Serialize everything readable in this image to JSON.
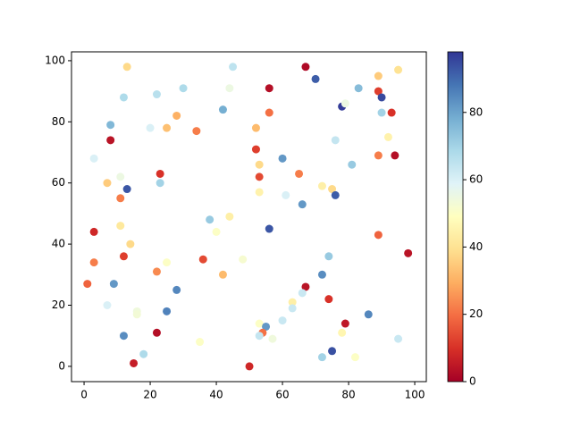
{
  "chart_data": {
    "type": "scatter",
    "x": [
      13,
      45,
      67,
      95,
      70,
      89,
      56,
      30,
      44,
      83,
      89,
      90,
      12,
      22,
      42,
      56,
      28,
      78,
      79,
      90,
      93,
      8,
      20,
      25,
      52,
      34,
      8,
      76,
      92,
      52,
      89,
      94,
      3,
      60,
      81,
      53,
      65,
      23,
      11,
      53,
      7,
      23,
      72,
      13,
      75,
      53,
      61,
      76,
      11,
      66,
      44,
      38,
      11,
      56,
      40,
      3,
      89,
      14,
      98,
      74,
      12,
      36,
      48,
      25,
      3,
      22,
      42,
      72,
      1,
      9,
      67,
      28,
      66,
      74,
      63,
      7,
      63,
      25,
      16,
      16,
      60,
      53,
      79,
      86,
      55,
      22,
      54,
      78,
      53,
      12,
      57,
      95,
      35,
      75,
      18,
      72,
      82,
      15,
      50
    ],
    "values": [
      98,
      98,
      98,
      97,
      94,
      95,
      91,
      91,
      91,
      91,
      90,
      88,
      88,
      89,
      84,
      83,
      82,
      85,
      86,
      83,
      83,
      79,
      78,
      78,
      78,
      77,
      74,
      74,
      75,
      71,
      69,
      69,
      68,
      68,
      66,
      66,
      63,
      63,
      62,
      62,
      60,
      60,
      59,
      58,
      58,
      57,
      56,
      56,
      55,
      53,
      49,
      48,
      46,
      45,
      44,
      44,
      43,
      40,
      37,
      36,
      36,
      35,
      35,
      34,
      34,
      31,
      30,
      30,
      27,
      27,
      26,
      25,
      24,
      22,
      21,
      20,
      19,
      18,
      18,
      17,
      15,
      14,
      14,
      17,
      13,
      11,
      11,
      11,
      10,
      10,
      9,
      9,
      8,
      5,
      4,
      3,
      3,
      1,
      0
    ],
    "color_values": [
      38,
      65,
      2,
      40,
      92,
      35,
      3,
      68,
      55,
      75,
      12,
      95,
      68,
      66,
      78,
      20,
      30,
      97,
      55,
      70,
      10,
      76,
      60,
      33,
      32,
      22,
      4,
      64,
      45,
      12,
      22,
      3,
      60,
      82,
      72,
      38,
      22,
      10,
      55,
      14,
      35,
      70,
      44,
      93,
      38,
      45,
      60,
      92,
      22,
      82,
      44,
      72,
      42,
      93,
      50,
      8,
      18,
      38,
      4,
      72,
      12,
      14,
      52,
      50,
      22,
      24,
      32,
      84,
      18,
      82,
      4,
      85,
      63,
      10,
      44,
      60,
      63,
      86,
      54,
      53,
      63,
      50,
      5,
      85,
      82,
      3,
      20,
      46,
      64,
      84,
      54,
      63,
      50,
      94,
      68,
      70,
      50,
      6,
      8
    ],
    "colormap": [
      "#a50026",
      "#d73027",
      "#f46d43",
      "#fdae61",
      "#fee090",
      "#ffffbf",
      "#e0f3f8",
      "#abd9e9",
      "#74add1",
      "#4575b4",
      "#313695"
    ],
    "clim": [
      0,
      98
    ],
    "cticks": [
      0,
      20,
      40,
      60,
      80
    ],
    "xlim": [
      -3.8,
      103.5
    ],
    "ylim": [
      -5,
      102.9
    ],
    "xticks": [
      0,
      20,
      40,
      60,
      80,
      100
    ],
    "yticks": [
      0,
      20,
      40,
      60,
      80,
      100
    ]
  }
}
